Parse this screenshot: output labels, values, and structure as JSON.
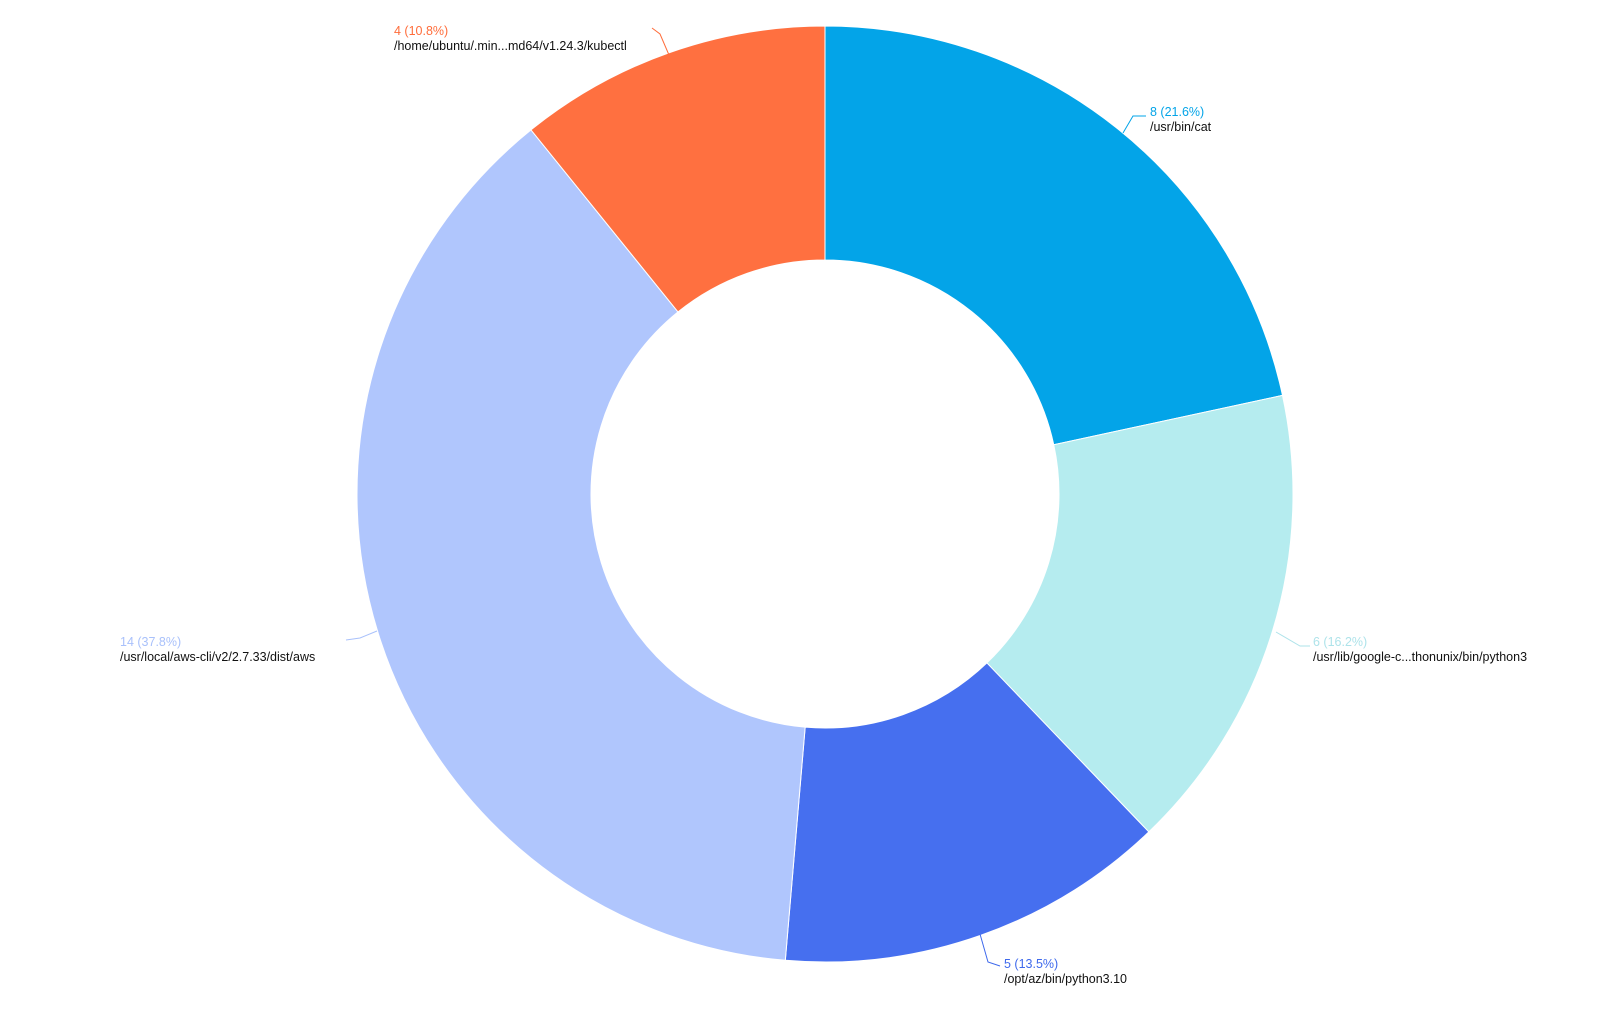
{
  "chart_data": {
    "type": "pie",
    "variant": "donut",
    "slices": [
      {
        "label": "/usr/bin/cat",
        "value": 8,
        "percent": "21.6%",
        "color": "#03a4e8",
        "label_color": "#03a4e8"
      },
      {
        "label": "/usr/lib/google-c...thonunix/bin/python3",
        "value": 6,
        "percent": "16.2%",
        "color": "#b5ecef",
        "label_color": "#aee3ea"
      },
      {
        "label": "/opt/az/bin/python3.10",
        "value": 5,
        "percent": "13.5%",
        "color": "#466fef",
        "label_color": "#3e69ec"
      },
      {
        "label": "/usr/local/aws-cli/v2/2.7.33/dist/aws",
        "value": 14,
        "percent": "37.8%",
        "color": "#b0c6fd",
        "label_color": "#a9c1fb"
      },
      {
        "label": "/home/ubuntu/.min...md64/v1.24.3/kubectl",
        "value": 4,
        "percent": "10.8%",
        "color": "#ff7040",
        "label_color": "#ff6d3b"
      }
    ],
    "value_labels": [
      "8 (21.6%)",
      "6 (16.2%)",
      "5 (13.5%)",
      "14 (37.8%)",
      "4 (10.8%)"
    ],
    "legend": "none",
    "start_angle": "top",
    "direction": "clockwise"
  }
}
